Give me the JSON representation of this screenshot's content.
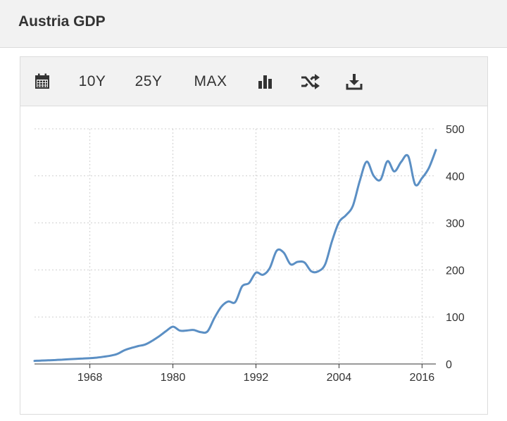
{
  "header": {
    "title": "Austria GDP"
  },
  "toolbar": {
    "items": [
      {
        "type": "icon",
        "icon": "calendar-icon"
      },
      {
        "type": "text",
        "label": "10Y"
      },
      {
        "type": "text",
        "label": "25Y"
      },
      {
        "type": "text",
        "label": "MAX"
      },
      {
        "type": "icon",
        "icon": "bar-chart-icon"
      },
      {
        "type": "icon",
        "icon": "shuffle-icon"
      },
      {
        "type": "icon",
        "icon": "download-icon"
      }
    ]
  },
  "colors": {
    "line": "#5b8fc4",
    "grid": "#cfcfcf",
    "axis": "#333333",
    "toolbar_bg": "#f2f2f2"
  },
  "chart_data": {
    "type": "line",
    "title": "",
    "xlabel": "",
    "ylabel": "",
    "xlim": [
      1960,
      2018
    ],
    "ylim": [
      0,
      500
    ],
    "x_ticks": [
      1968,
      1980,
      1992,
      2004,
      2016
    ],
    "y_ticks": [
      0,
      100,
      200,
      300,
      400,
      500
    ],
    "y_axis_side": "right",
    "grid": true,
    "series": [
      {
        "name": "",
        "x": [
          1960,
          1961,
          1962,
          1963,
          1964,
          1965,
          1966,
          1967,
          1968,
          1969,
          1970,
          1971,
          1972,
          1973,
          1974,
          1975,
          1976,
          1977,
          1978,
          1979,
          1980,
          1981,
          1982,
          1983,
          1984,
          1985,
          1986,
          1987,
          1988,
          1989,
          1990,
          1991,
          1992,
          1993,
          1994,
          1995,
          1996,
          1997,
          1998,
          1999,
          2000,
          2001,
          2002,
          2003,
          2004,
          2005,
          2006,
          2007,
          2008,
          2009,
          2010,
          2011,
          2012,
          2013,
          2014,
          2015,
          2016,
          2017,
          2018
        ],
        "y": [
          6.6,
          7.3,
          7.8,
          8.4,
          9.2,
          10.0,
          10.9,
          11.6,
          12.3,
          13.5,
          15.4,
          17.7,
          21.6,
          29.2,
          34.1,
          38.1,
          41.4,
          49.3,
          58.9,
          69.7,
          79.3,
          70.9,
          71.1,
          72.3,
          67.8,
          69.3,
          97.9,
          121.7,
          133.0,
          131.5,
          165.0,
          172.1,
          194.2,
          189.6,
          204.0,
          241.0,
          237.0,
          212.0,
          217.0,
          216.0,
          197.0,
          197.0,
          212.0,
          261.7,
          301.5,
          316.1,
          336.3,
          389.2,
          430.3,
          400.2,
          391.9,
          431.1,
          409.4,
          430.1,
          441.9,
          381.8,
          395.2,
          417.2,
          455.1
        ]
      }
    ]
  }
}
